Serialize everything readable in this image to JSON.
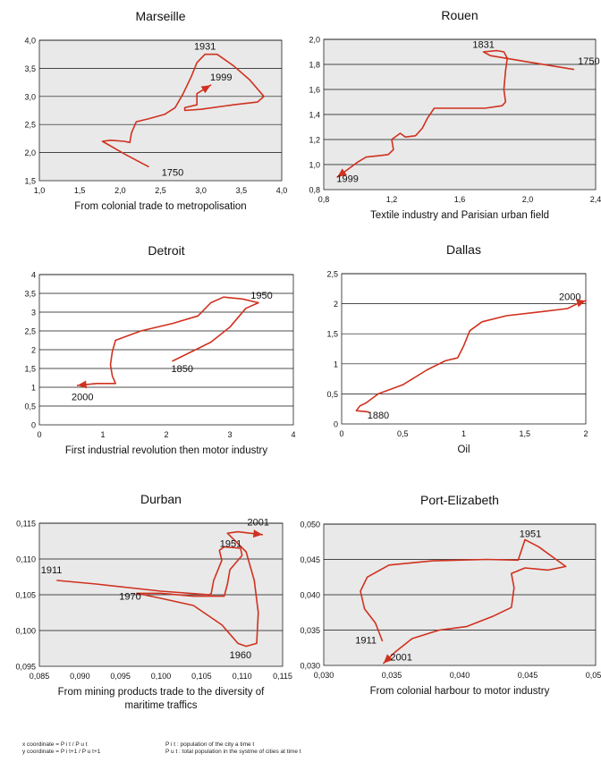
{
  "chart_data": [
    {
      "type": "line",
      "title": "Marseille",
      "xlabel": [
        "From colonial trade to metropolisation"
      ],
      "xlim": [
        1.0,
        4.0
      ],
      "xticks": [
        1.0,
        1.5,
        2.0,
        2.5,
        3.0,
        3.5,
        4.0
      ],
      "ylim": [
        1.5,
        4.0
      ],
      "yticks": [
        1.5,
        2.0,
        2.5,
        3.0,
        3.5,
        4.0
      ],
      "decimal_comma": true,
      "decimals": 1,
      "grid": "horizontal",
      "plot_bg": "#e9e9e9",
      "line_color": "#d0311f",
      "points": [
        [
          2.35,
          1.75
        ],
        [
          2.05,
          1.98
        ],
        [
          1.78,
          2.2
        ],
        [
          1.88,
          2.22
        ],
        [
          2.05,
          2.2
        ],
        [
          2.12,
          2.18
        ],
        [
          2.14,
          2.35
        ],
        [
          2.2,
          2.55
        ],
        [
          2.35,
          2.6
        ],
        [
          2.55,
          2.68
        ],
        [
          2.68,
          2.8
        ],
        [
          2.78,
          3.05
        ],
        [
          2.88,
          3.35
        ],
        [
          2.95,
          3.6
        ],
        [
          3.05,
          3.75
        ],
        [
          3.2,
          3.75
        ],
        [
          3.4,
          3.55
        ],
        [
          3.6,
          3.3
        ],
        [
          3.78,
          3.0
        ],
        [
          3.7,
          2.9
        ],
        [
          3.4,
          2.85
        ],
        [
          3.0,
          2.77
        ],
        [
          2.8,
          2.75
        ],
        [
          2.8,
          2.8
        ],
        [
          2.95,
          2.85
        ],
        [
          2.95,
          3.05
        ],
        [
          3.12,
          3.2
        ]
      ],
      "labels": [
        {
          "text": "1931",
          "x": 3.05,
          "y": 3.9
        },
        {
          "text": "1999",
          "x": 3.25,
          "y": 3.35
        },
        {
          "text": "1750",
          "x": 2.65,
          "y": 1.65
        }
      ]
    },
    {
      "type": "line",
      "title": "Rouen",
      "xlabel": [
        "Textile industry and Parisian urban field"
      ],
      "xlim": [
        0.8,
        2.4
      ],
      "xticks": [
        0.8,
        1.2,
        1.6,
        2.0,
        2.4
      ],
      "ylim": [
        0.8,
        2.0
      ],
      "yticks": [
        0.8,
        1.0,
        1.2,
        1.4,
        1.6,
        1.8,
        2.0
      ],
      "decimal_comma": true,
      "decimals": 1,
      "grid": "horizontal",
      "plot_bg": "#e9e9e9",
      "line_color": "#d0311f",
      "points": [
        [
          2.27,
          1.76
        ],
        [
          2.0,
          1.82
        ],
        [
          1.78,
          1.87
        ],
        [
          1.74,
          1.9
        ],
        [
          1.82,
          1.91
        ],
        [
          1.86,
          1.9
        ],
        [
          1.88,
          1.85
        ],
        [
          1.87,
          1.75
        ],
        [
          1.86,
          1.6
        ],
        [
          1.87,
          1.5
        ],
        [
          1.85,
          1.47
        ],
        [
          1.75,
          1.45
        ],
        [
          1.55,
          1.45
        ],
        [
          1.45,
          1.45
        ],
        [
          1.41,
          1.37
        ],
        [
          1.38,
          1.29
        ],
        [
          1.34,
          1.23
        ],
        [
          1.28,
          1.22
        ],
        [
          1.25,
          1.25
        ],
        [
          1.2,
          1.2
        ],
        [
          1.21,
          1.12
        ],
        [
          1.18,
          1.08
        ],
        [
          1.12,
          1.07
        ],
        [
          1.05,
          1.06
        ],
        [
          1.0,
          1.02
        ],
        [
          0.94,
          0.96
        ],
        [
          0.88,
          0.9
        ]
      ],
      "labels": [
        {
          "text": "1831",
          "x": 1.74,
          "y": 1.96
        },
        {
          "text": "1750",
          "x": 2.36,
          "y": 1.83
        },
        {
          "text": "1999",
          "x": 0.94,
          "y": 0.89
        }
      ]
    },
    {
      "type": "line",
      "title": "Detroit",
      "xlabel": [
        "First industrial revolution then motor industry"
      ],
      "xlim": [
        0,
        4
      ],
      "xticks": [
        0,
        1,
        2,
        3,
        4
      ],
      "ylim": [
        0,
        4
      ],
      "yticks": [
        0,
        0.5,
        1,
        1.5,
        2,
        2.5,
        3,
        3.5,
        4
      ],
      "decimal_comma": true,
      "decimals": -1,
      "grid": "horizontal",
      "plot_bg": "#ffffff",
      "line_color": "#d0311f",
      "points": [
        [
          2.1,
          1.7
        ],
        [
          2.4,
          1.95
        ],
        [
          2.7,
          2.2
        ],
        [
          3.0,
          2.6
        ],
        [
          3.25,
          3.1
        ],
        [
          3.45,
          3.25
        ],
        [
          3.2,
          3.35
        ],
        [
          2.9,
          3.4
        ],
        [
          2.7,
          3.25
        ],
        [
          2.5,
          2.9
        ],
        [
          2.1,
          2.7
        ],
        [
          1.6,
          2.5
        ],
        [
          1.2,
          2.25
        ],
        [
          1.15,
          1.95
        ],
        [
          1.12,
          1.6
        ],
        [
          1.15,
          1.3
        ],
        [
          1.2,
          1.1
        ],
        [
          1.1,
          1.1
        ],
        [
          0.9,
          1.1
        ],
        [
          0.6,
          1.05
        ]
      ],
      "labels": [
        {
          "text": "1950",
          "x": 3.5,
          "y": 3.45
        },
        {
          "text": "1850",
          "x": 2.25,
          "y": 1.5
        },
        {
          "text": "2000",
          "x": 0.68,
          "y": 0.75
        }
      ]
    },
    {
      "type": "line",
      "title": "Dallas",
      "xlabel": [
        "Oil"
      ],
      "xlim": [
        0,
        2
      ],
      "xticks": [
        0,
        0.5,
        1,
        1.5,
        2
      ],
      "ylim": [
        0,
        2.5
      ],
      "yticks": [
        0,
        0.5,
        1,
        1.5,
        2,
        2.5
      ],
      "decimal_comma": true,
      "decimals": -1,
      "grid": "horizontal",
      "plot_bg": "#ffffff",
      "line_color": "#d0311f",
      "points": [
        [
          0.22,
          0.2
        ],
        [
          0.12,
          0.22
        ],
        [
          0.15,
          0.3
        ],
        [
          0.2,
          0.35
        ],
        [
          0.3,
          0.5
        ],
        [
          0.5,
          0.65
        ],
        [
          0.7,
          0.9
        ],
        [
          0.85,
          1.05
        ],
        [
          0.95,
          1.1
        ],
        [
          1.0,
          1.3
        ],
        [
          1.05,
          1.55
        ],
        [
          1.15,
          1.7
        ],
        [
          1.35,
          1.8
        ],
        [
          1.65,
          1.87
        ],
        [
          1.85,
          1.92
        ],
        [
          1.95,
          2.02
        ],
        [
          2.0,
          2.05
        ]
      ],
      "labels": [
        {
          "text": "2000",
          "x": 1.87,
          "y": 2.12
        },
        {
          "text": "1880",
          "x": 0.3,
          "y": 0.15
        }
      ]
    },
    {
      "type": "line",
      "title": "Durban",
      "xlabel": [
        "From mining products trade to the diversity of",
        "maritime traffics"
      ],
      "xlim": [
        0.085,
        0.115
      ],
      "xticks": [
        0.085,
        0.09,
        0.095,
        0.1,
        0.105,
        0.11,
        0.115
      ],
      "ylim": [
        0.095,
        0.115
      ],
      "yticks": [
        0.095,
        0.1,
        0.105,
        0.11,
        0.115
      ],
      "decimal_comma": true,
      "decimals": 3,
      "grid": "horizontal",
      "plot_bg": "#e9e9e9",
      "line_color": "#d0311f",
      "points": [
        [
          0.0872,
          0.107
        ],
        [
          0.092,
          0.1065
        ],
        [
          0.096,
          0.106
        ],
        [
          0.1,
          0.1055
        ],
        [
          0.106,
          0.105
        ],
        [
          0.1062,
          0.1052
        ],
        [
          0.1065,
          0.107
        ],
        [
          0.1075,
          0.1098
        ],
        [
          0.1072,
          0.1112
        ],
        [
          0.1078,
          0.1117
        ],
        [
          0.1098,
          0.1115
        ],
        [
          0.11,
          0.1105
        ],
        [
          0.1085,
          0.1085
        ],
        [
          0.1082,
          0.1065
        ],
        [
          0.1078,
          0.1048
        ],
        [
          0.104,
          0.1048
        ],
        [
          0.1,
          0.1052
        ],
        [
          0.097,
          0.1052
        ],
        [
          0.1,
          0.1045
        ],
        [
          0.104,
          0.1035
        ],
        [
          0.1075,
          0.1008
        ],
        [
          0.1095,
          0.0982
        ],
        [
          0.1105,
          0.0978
        ],
        [
          0.1118,
          0.0982
        ],
        [
          0.112,
          0.1025
        ],
        [
          0.1115,
          0.107
        ],
        [
          0.1105,
          0.111
        ],
        [
          0.1082,
          0.1136
        ],
        [
          0.1095,
          0.1138
        ],
        [
          0.1125,
          0.1134
        ]
      ],
      "labels": [
        {
          "text": "2001",
          "x": 0.112,
          "y": 0.1152
        },
        {
          "text": "1951",
          "x": 0.1086,
          "y": 0.1122
        },
        {
          "text": "1911",
          "x": 0.0865,
          "y": 0.1085
        },
        {
          "text": "1970",
          "x": 0.0962,
          "y": 0.1048
        },
        {
          "text": "1960",
          "x": 0.1098,
          "y": 0.0966
        }
      ]
    },
    {
      "type": "line",
      "title": "Port-Elizabeth",
      "xlabel": [
        "From colonial harbour to motor industry"
      ],
      "xlim": [
        0.03,
        0.05
      ],
      "xticks": [
        0.03,
        0.035,
        0.04,
        0.045,
        0.05
      ],
      "ylim": [
        0.03,
        0.05
      ],
      "yticks": [
        0.03,
        0.035,
        0.04,
        0.045,
        0.05
      ],
      "decimal_comma": true,
      "decimals": 3,
      "grid": "horizontal",
      "plot_bg": "#e9e9e9",
      "line_color": "#d0311f",
      "points": [
        [
          0.0343,
          0.0335
        ],
        [
          0.0338,
          0.036
        ],
        [
          0.033,
          0.038
        ],
        [
          0.0327,
          0.0405
        ],
        [
          0.0332,
          0.0425
        ],
        [
          0.0348,
          0.0442
        ],
        [
          0.038,
          0.0448
        ],
        [
          0.042,
          0.045
        ],
        [
          0.0443,
          0.0449
        ],
        [
          0.0448,
          0.0478
        ],
        [
          0.0458,
          0.0468
        ],
        [
          0.0478,
          0.044
        ],
        [
          0.0465,
          0.0435
        ],
        [
          0.0448,
          0.0438
        ],
        [
          0.0438,
          0.043
        ],
        [
          0.044,
          0.041
        ],
        [
          0.0438,
          0.0382
        ],
        [
          0.0425,
          0.037
        ],
        [
          0.0405,
          0.0355
        ],
        [
          0.0385,
          0.035
        ],
        [
          0.0365,
          0.0338
        ],
        [
          0.0352,
          0.0318
        ],
        [
          0.0344,
          0.0303
        ]
      ],
      "labels": [
        {
          "text": "1951",
          "x": 0.0452,
          "y": 0.0487
        },
        {
          "text": "1911",
          "x": 0.0331,
          "y": 0.0336
        },
        {
          "text": "2001",
          "x": 0.0357,
          "y": 0.0312
        }
      ]
    }
  ],
  "footnote": {
    "x_coord": "x coordinate = P i t / P u t",
    "y_coord": "y coordinate = P i t+1 / P u t+1",
    "pit_def": "P i t : population of the city a time t",
    "put_def": "P u t : total population in the systme of cities at time t"
  }
}
